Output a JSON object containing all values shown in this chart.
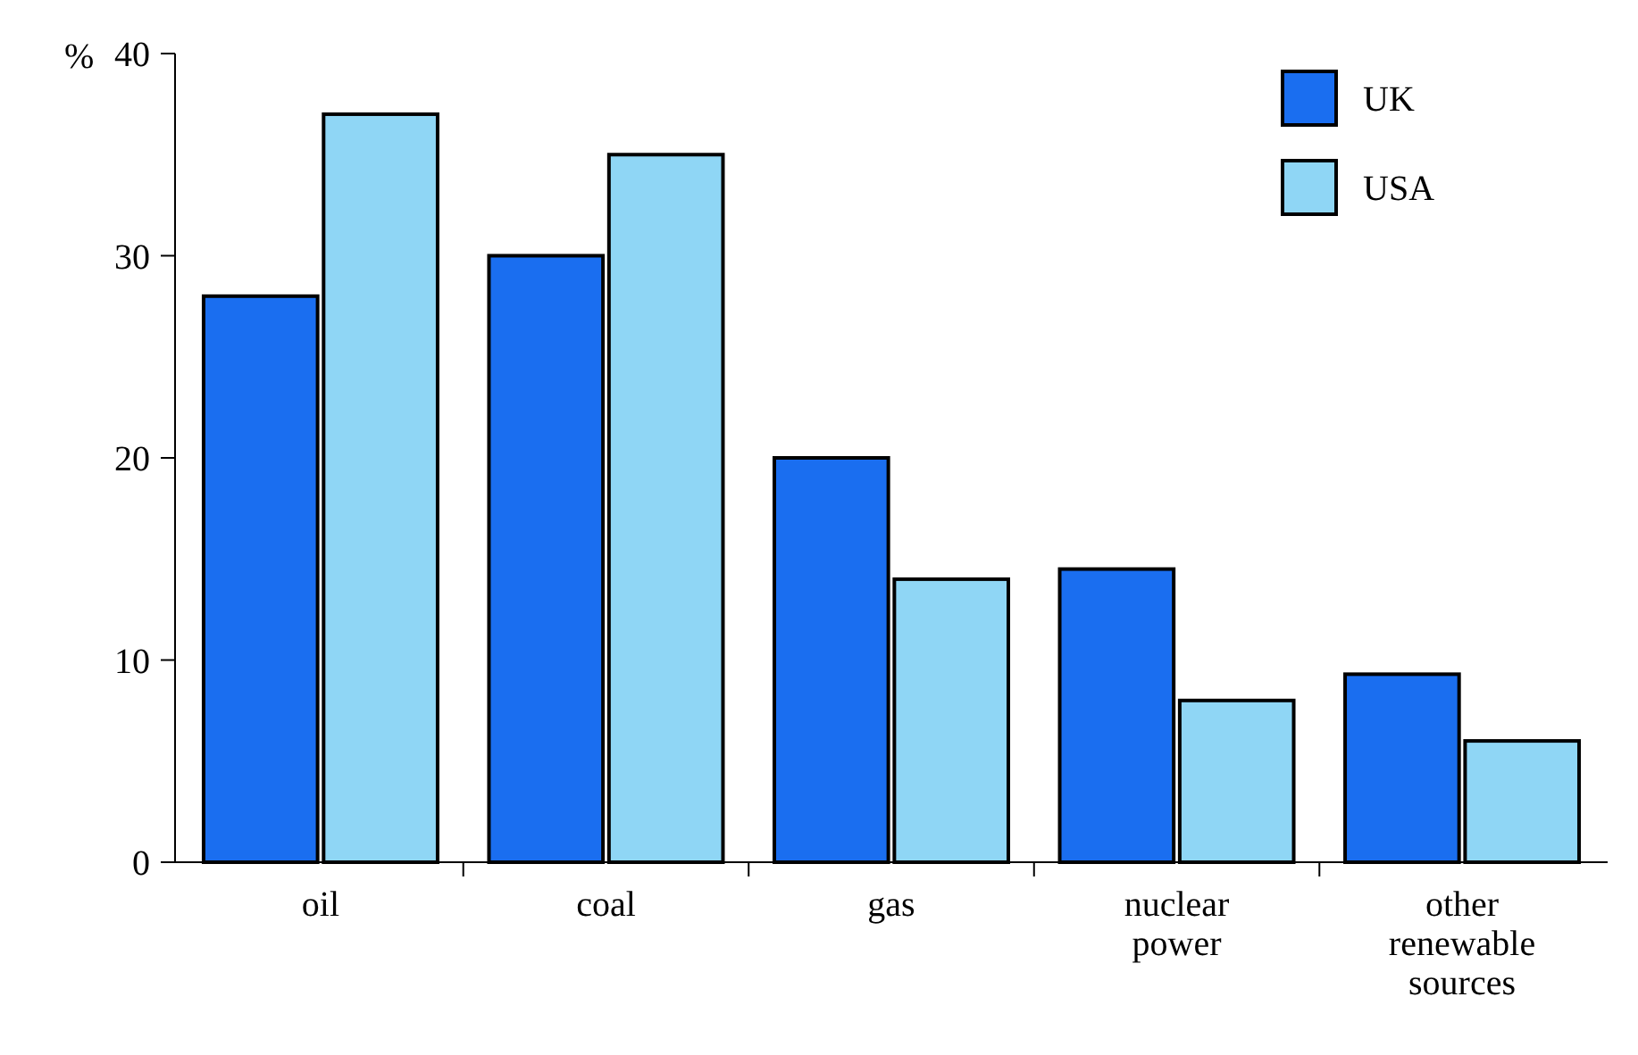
{
  "chart_data": {
    "type": "bar",
    "ylabel": "%",
    "categories": [
      "oil",
      "coal",
      "gas",
      "nuclear power",
      "other renewable sources"
    ],
    "series": [
      {
        "name": "UK",
        "color": "#1a6ef0",
        "values": [
          28,
          30,
          20,
          14.5,
          9.3
        ]
      },
      {
        "name": "USA",
        "color": "#8fd6f5",
        "values": [
          37,
          35,
          14,
          8,
          6
        ]
      }
    ],
    "ylim": [
      0,
      40
    ],
    "yticks": [
      0,
      10,
      20,
      30,
      40
    ],
    "grid": false,
    "legend": "top right"
  }
}
